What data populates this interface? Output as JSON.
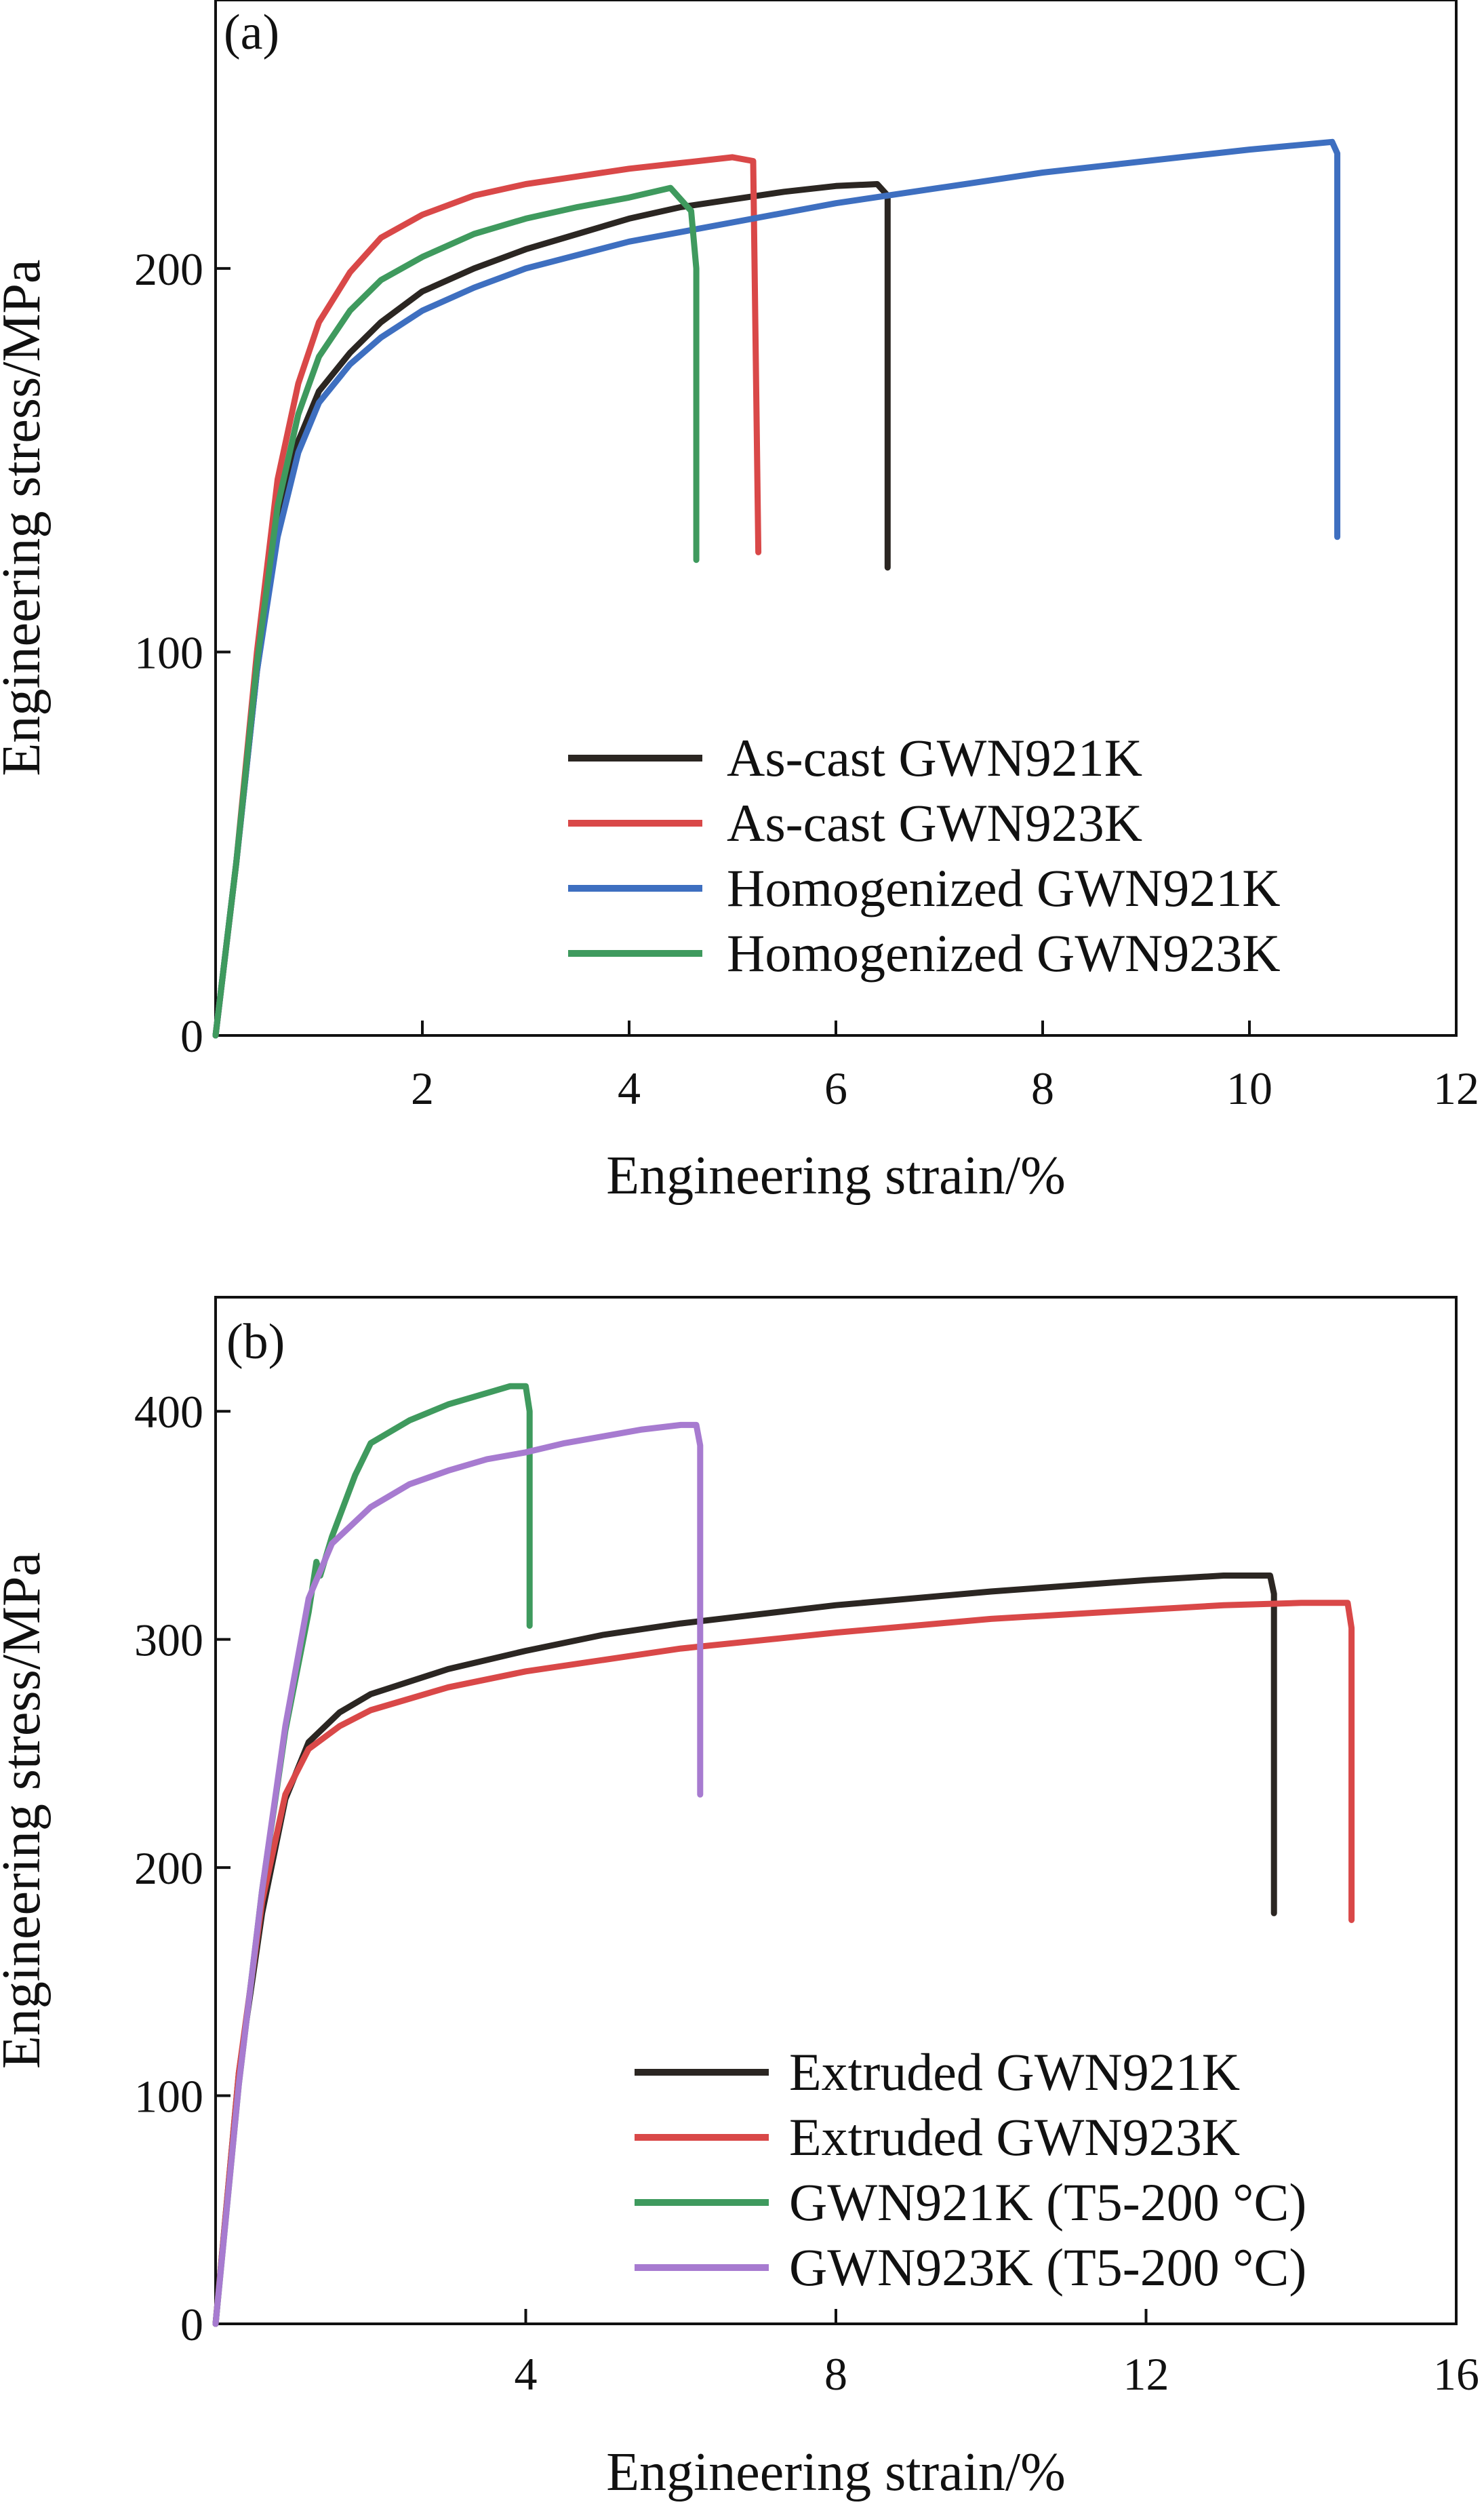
{
  "chart_data": [
    {
      "panel_label": "(a)",
      "type": "line",
      "xlabel": "Engineering strain/%",
      "ylabel": "Engineering stress/MPa",
      "xlim": [
        0,
        12
      ],
      "ylim": [
        0,
        270
      ],
      "xticks": [
        2,
        4,
        6,
        8,
        10,
        12
      ],
      "yticks": [
        0,
        100,
        200
      ],
      "grid": false,
      "legend_position": "bottom-right",
      "series": [
        {
          "name": "As-cast GWN921K",
          "color": "#2b2622",
          "points": [
            [
              0,
              0
            ],
            [
              0.2,
              45
            ],
            [
              0.4,
              95
            ],
            [
              0.6,
              132
            ],
            [
              0.8,
              155
            ],
            [
              1.0,
              168
            ],
            [
              1.3,
              178
            ],
            [
              1.6,
              186
            ],
            [
              2.0,
              194
            ],
            [
              2.5,
              200
            ],
            [
              3.0,
              205
            ],
            [
              3.5,
              209
            ],
            [
              4.0,
              213
            ],
            [
              4.5,
              216
            ],
            [
              5.0,
              218
            ],
            [
              5.5,
              220
            ],
            [
              6.0,
              221.5
            ],
            [
              6.4,
              222
            ],
            [
              6.5,
              219
            ],
            [
              6.5,
              122
            ]
          ]
        },
        {
          "name": "As-cast GWN923K",
          "color": "#d94848",
          "points": [
            [
              0,
              0
            ],
            [
              0.2,
              45
            ],
            [
              0.4,
              100
            ],
            [
              0.6,
              145
            ],
            [
              0.8,
              170
            ],
            [
              1.0,
              186
            ],
            [
              1.3,
              199
            ],
            [
              1.6,
              208
            ],
            [
              2.0,
              214
            ],
            [
              2.5,
              219
            ],
            [
              3.0,
              222
            ],
            [
              3.5,
              224
            ],
            [
              4.0,
              226
            ],
            [
              4.5,
              227.5
            ],
            [
              5.0,
              229
            ],
            [
              5.2,
              228
            ],
            [
              5.25,
              126
            ]
          ]
        },
        {
          "name": "Homogenized GWN921K",
          "color": "#3e6fc0",
          "points": [
            [
              0,
              0
            ],
            [
              0.2,
              45
            ],
            [
              0.4,
              95
            ],
            [
              0.6,
              130
            ],
            [
              0.8,
              152
            ],
            [
              1.0,
              165
            ],
            [
              1.3,
              175
            ],
            [
              1.6,
              182
            ],
            [
              2.0,
              189
            ],
            [
              2.5,
              195
            ],
            [
              3.0,
              200
            ],
            [
              4.0,
              207
            ],
            [
              5.0,
              212
            ],
            [
              6.0,
              217
            ],
            [
              7.0,
              221
            ],
            [
              8.0,
              225
            ],
            [
              9.0,
              228
            ],
            [
              10.0,
              231
            ],
            [
              10.8,
              233
            ],
            [
              10.85,
              230
            ],
            [
              10.85,
              130
            ]
          ]
        },
        {
          "name": "Homogenized GWN923K",
          "color": "#3f9a5e",
          "points": [
            [
              0,
              0
            ],
            [
              0.2,
              45
            ],
            [
              0.4,
              97
            ],
            [
              0.6,
              138
            ],
            [
              0.8,
              162
            ],
            [
              1.0,
              177
            ],
            [
              1.3,
              189
            ],
            [
              1.6,
              197
            ],
            [
              2.0,
              203
            ],
            [
              2.5,
              209
            ],
            [
              3.0,
              213
            ],
            [
              3.5,
              216
            ],
            [
              4.0,
              218.5
            ],
            [
              4.4,
              221
            ],
            [
              4.6,
              215
            ],
            [
              4.65,
              200
            ],
            [
              4.65,
              124
            ]
          ]
        }
      ]
    },
    {
      "panel_label": "(b)",
      "type": "line",
      "xlabel": "Engineering strain/%",
      "ylabel": "Engineering stress/MPa",
      "xlim": [
        0,
        16
      ],
      "ylim": [
        0,
        450
      ],
      "xticks": [
        4,
        8,
        12,
        16
      ],
      "yticks": [
        0,
        100,
        200,
        300,
        400
      ],
      "grid": false,
      "legend_position": "bottom-right",
      "series": [
        {
          "name": "Extruded GWN921K",
          "color": "#2b2622",
          "points": [
            [
              0,
              0
            ],
            [
              0.3,
              110
            ],
            [
              0.6,
              180
            ],
            [
              0.9,
              230
            ],
            [
              1.2,
              255
            ],
            [
              1.6,
              268
            ],
            [
              2.0,
              276
            ],
            [
              3.0,
              287
            ],
            [
              4.0,
              295
            ],
            [
              5.0,
              302
            ],
            [
              6.0,
              307
            ],
            [
              8.0,
              315
            ],
            [
              10.0,
              321
            ],
            [
              12.0,
              326
            ],
            [
              13.0,
              328
            ],
            [
              13.6,
              328
            ],
            [
              13.65,
              320
            ],
            [
              13.65,
              180
            ]
          ]
        },
        {
          "name": "Extruded GWN923K",
          "color": "#d94848",
          "points": [
            [
              0,
              0
            ],
            [
              0.3,
              110
            ],
            [
              0.6,
              185
            ],
            [
              0.9,
              232
            ],
            [
              1.2,
              252
            ],
            [
              1.6,
              262
            ],
            [
              2.0,
              269
            ],
            [
              3.0,
              279
            ],
            [
              4.0,
              286
            ],
            [
              5.0,
              291
            ],
            [
              6.0,
              296
            ],
            [
              8.0,
              303
            ],
            [
              10.0,
              309
            ],
            [
              12.0,
              313
            ],
            [
              13.0,
              315
            ],
            [
              14.0,
              316
            ],
            [
              14.6,
              316
            ],
            [
              14.65,
              305
            ],
            [
              14.65,
              177
            ]
          ]
        },
        {
          "name": "GWN921K (T5-200 °C)",
          "color": "#3f9a5e",
          "points": [
            [
              0,
              0
            ],
            [
              0.3,
              105
            ],
            [
              0.6,
              190
            ],
            [
              0.9,
              260
            ],
            [
              1.2,
              312
            ],
            [
              1.3,
              334
            ],
            [
              1.35,
              328
            ],
            [
              1.5,
              345
            ],
            [
              1.8,
              372
            ],
            [
              2.0,
              386
            ],
            [
              2.5,
              396
            ],
            [
              3.0,
              403
            ],
            [
              3.5,
              408
            ],
            [
              3.8,
              411
            ],
            [
              4.0,
              411
            ],
            [
              4.05,
              400
            ],
            [
              4.05,
              306
            ]
          ]
        },
        {
          "name": "GWN923K (T5-200 °C)",
          "color": "#a77bd0",
          "points": [
            [
              0,
              0
            ],
            [
              0.3,
              105
            ],
            [
              0.6,
              190
            ],
            [
              0.9,
              262
            ],
            [
              1.2,
              318
            ],
            [
              1.5,
              342
            ],
            [
              2.0,
              358
            ],
            [
              2.5,
              368
            ],
            [
              3.0,
              374
            ],
            [
              3.5,
              379
            ],
            [
              4.0,
              382
            ],
            [
              4.5,
              386
            ],
            [
              5.0,
              389
            ],
            [
              5.5,
              392
            ],
            [
              6.0,
              394
            ],
            [
              6.2,
              394
            ],
            [
              6.25,
              385
            ],
            [
              6.25,
              232
            ]
          ]
        }
      ]
    }
  ]
}
